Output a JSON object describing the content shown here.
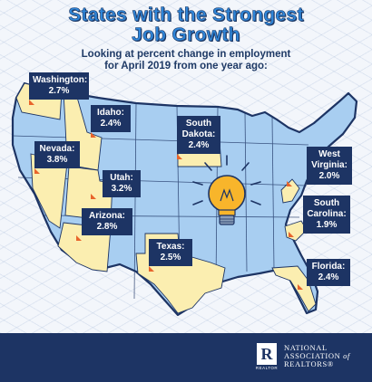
{
  "header": {
    "title_line1": "States with the Strongest",
    "title_line2": "Job Growth",
    "subtitle_line1": "Looking at percent change in employment",
    "subtitle_line2": "for April 2019 from one year ago:"
  },
  "states": [
    {
      "name": "Washington:",
      "value": "2.7%"
    },
    {
      "name": "Idaho:",
      "value": "2.4%"
    },
    {
      "name": "South",
      "name2": "Dakota:",
      "value": "2.4%"
    },
    {
      "name": "Nevada:",
      "value": "3.8%"
    },
    {
      "name": "Utah:",
      "value": "3.2%"
    },
    {
      "name": "West",
      "name2": "Virginia:",
      "value": "2.0%"
    },
    {
      "name": "South",
      "name2": "Carolina:",
      "value": "1.9%"
    },
    {
      "name": "Arizona:",
      "value": "2.8%"
    },
    {
      "name": "Texas:",
      "value": "2.5%"
    },
    {
      "name": "Florida:",
      "value": "2.4%"
    }
  ],
  "footer": {
    "logo_letter": "R",
    "logo_sub": "REALTOR",
    "org_line1": "NATIONAL",
    "org_line2a": "ASSOCIATION",
    "org_line2b": "of",
    "org_line3": "REALTORS®"
  },
  "colors": {
    "map_fill": "#a8cef1",
    "map_outline": "#1d3464",
    "highlight_fill": "#fbeeb0",
    "label_bg": "#1d3464",
    "accent": "#e8642b",
    "title": "#2f86d9"
  }
}
